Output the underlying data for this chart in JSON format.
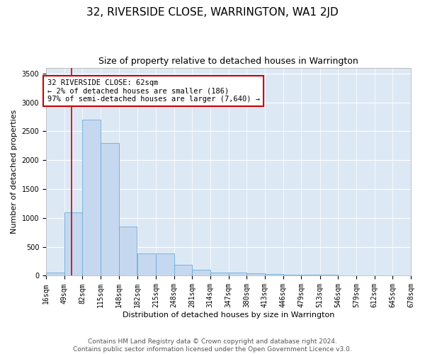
{
  "title": "32, RIVERSIDE CLOSE, WARRINGTON, WA1 2JD",
  "subtitle": "Size of property relative to detached houses in Warrington",
  "xlabel": "Distribution of detached houses by size in Warrington",
  "ylabel": "Number of detached properties",
  "bar_bins": [
    16,
    49,
    82,
    115,
    148,
    182,
    215,
    248,
    281,
    314,
    347,
    380,
    413,
    446,
    479,
    513,
    546,
    579,
    612,
    645,
    678
  ],
  "bar_heights": [
    50,
    1100,
    2700,
    2300,
    850,
    390,
    390,
    190,
    100,
    60,
    55,
    40,
    30,
    20,
    15,
    12,
    8,
    5,
    3,
    2
  ],
  "bar_color": "#c5d8ef",
  "bar_edgecolor": "#6aaed6",
  "property_line_x": 62,
  "property_line_color": "#cc0000",
  "annotation_text": "32 RIVERSIDE CLOSE: 62sqm\n← 2% of detached houses are smaller (186)\n97% of semi-detached houses are larger (7,640) →",
  "annotation_box_color": "#cc0000",
  "ylim": [
    0,
    3600
  ],
  "yticks": [
    0,
    500,
    1000,
    1500,
    2000,
    2500,
    3000,
    3500
  ],
  "background_color": "#dde8f5",
  "footer_line1": "Contains HM Land Registry data © Crown copyright and database right 2024.",
  "footer_line2": "Contains public sector information licensed under the Open Government Licence v3.0.",
  "title_fontsize": 11,
  "subtitle_fontsize": 9,
  "axis_label_fontsize": 8,
  "tick_fontsize": 7,
  "annotation_fontsize": 7.5,
  "footer_fontsize": 6.5
}
